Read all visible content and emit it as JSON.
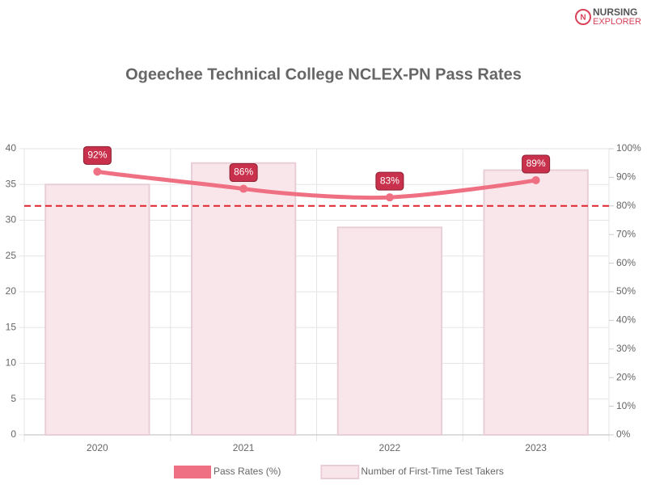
{
  "logo": {
    "line1": "NURSING",
    "line2": "EXPLORER"
  },
  "chart_data": {
    "type": "bar-line",
    "title": "Ogeechee Technical College NCLEX-PN Pass Rates",
    "categories": [
      "2020",
      "2021",
      "2022",
      "2023"
    ],
    "series": [
      {
        "name": "Pass Rates (%)",
        "type": "line",
        "axis": "y2",
        "color": "#f07083",
        "label_color": "#c8304b",
        "values": [
          92,
          86,
          83,
          89
        ],
        "value_labels": [
          "92%",
          "86%",
          "83%",
          "89%"
        ]
      },
      {
        "name": "Number of First-Time Test Takers",
        "type": "bar",
        "color": "#f9e6eb",
        "border_color": "#e8cfd7",
        "values": [
          35,
          38,
          29,
          37
        ]
      }
    ],
    "ylim": [
      0,
      40
    ],
    "yticks": [
      0,
      5,
      10,
      15,
      20,
      25,
      30,
      35,
      40
    ],
    "y2lim": [
      0,
      100
    ],
    "y2ticks": [
      {
        "value": 0,
        "label": "0%"
      },
      {
        "value": 10,
        "label": "10%"
      },
      {
        "value": 20,
        "label": "20%"
      },
      {
        "value": 30,
        "label": "30%"
      },
      {
        "value": 40,
        "label": "40%"
      },
      {
        "value": 50,
        "label": "50%"
      },
      {
        "value": 60,
        "label": "60%"
      },
      {
        "value": 70,
        "label": "70%"
      },
      {
        "value": 80,
        "label": "80%"
      },
      {
        "value": 90,
        "label": "90%"
      },
      {
        "value": 100,
        "label": "100%"
      }
    ],
    "threshold": {
      "value": 80,
      "axis": "y2",
      "color": "#e0242e"
    },
    "grid": true,
    "legend": "bottom"
  }
}
